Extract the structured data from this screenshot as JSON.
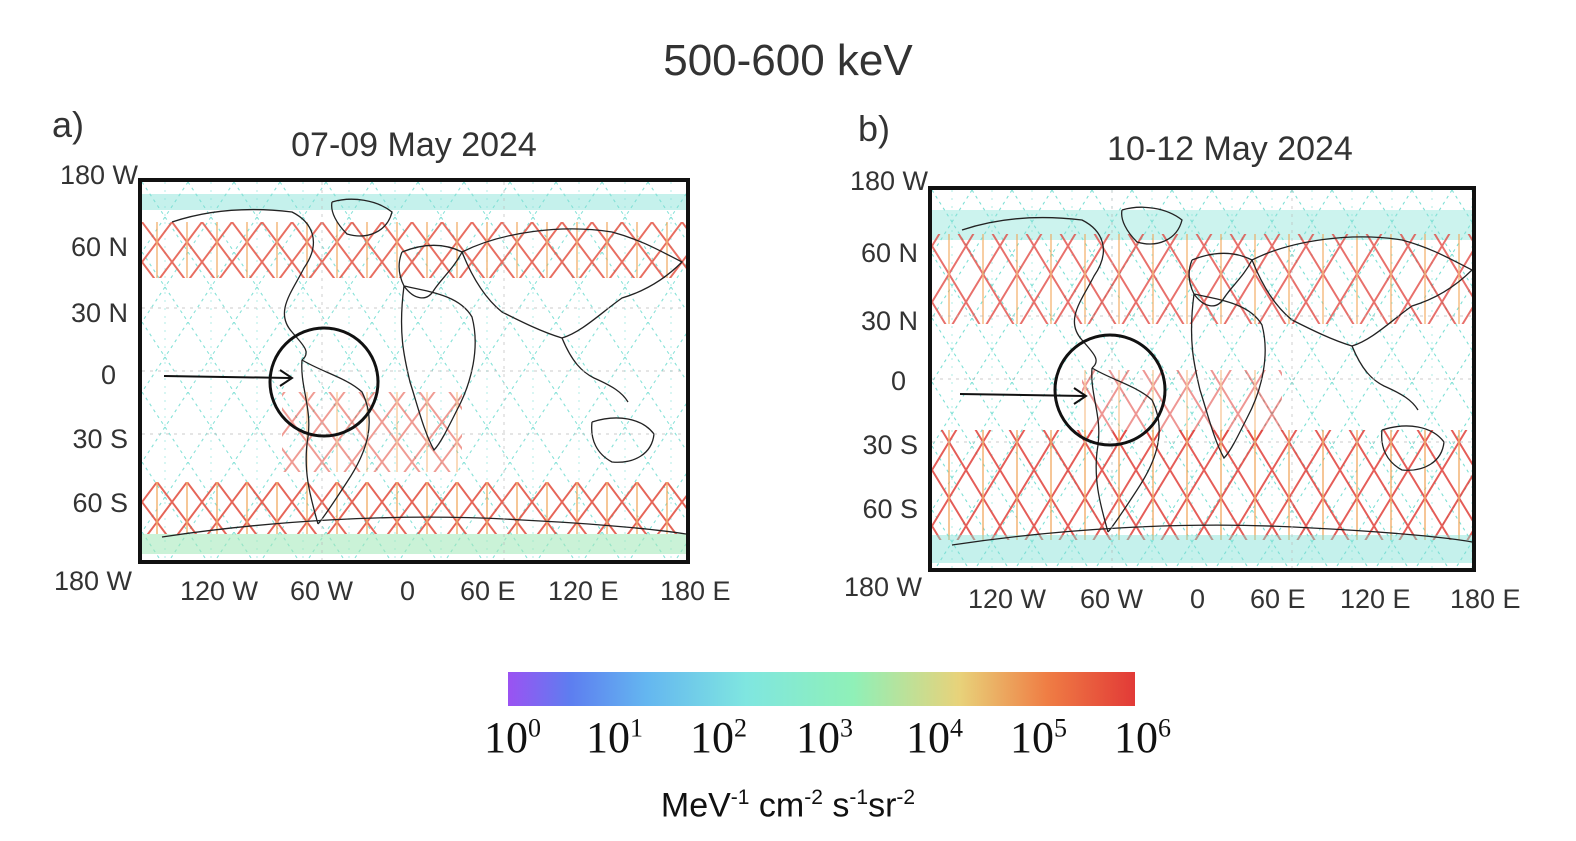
{
  "figure_title": "500-600 keV",
  "panels": [
    {
      "label": "a)",
      "title": "07-09 May 2024",
      "y_ticks": [
        "180 W",
        "60 N",
        "30 N",
        "0",
        "30 S",
        "60 S",
        "180 W"
      ],
      "x_ticks": [
        "120 W",
        "60 W",
        "0",
        "60 E",
        "120 E",
        "180 E"
      ]
    },
    {
      "label": "b)",
      "title": "10-12 May 2024",
      "y_ticks": [
        "180 W",
        "60 N",
        "30 N",
        "0",
        "30 S",
        "60 S",
        "180 W"
      ],
      "x_ticks": [
        "120 W",
        "60 W",
        "0",
        "60 E",
        "120 E",
        "180 E"
      ]
    }
  ],
  "colorbar": {
    "colors": [
      "#9b52f2",
      "#5d7ef0",
      "#64b6f0",
      "#7fe6e0",
      "#8ff0b8",
      "#e8d27a",
      "#ef7d44",
      "#e23a37"
    ],
    "ticks": [
      {
        "base": "10",
        "exp": "0"
      },
      {
        "base": "10",
        "exp": "1"
      },
      {
        "base": "10",
        "exp": "2"
      },
      {
        "base": "10",
        "exp": "3"
      },
      {
        "base": "10",
        "exp": "4"
      },
      {
        "base": "10",
        "exp": "5"
      },
      {
        "base": "10",
        "exp": "6"
      }
    ],
    "unit": {
      "p1": "MeV",
      "e1": "-1",
      "p2": " cm",
      "e2": "-2",
      "p3": " s",
      "e3": "-1",
      "p4": "sr",
      "e4": "-2"
    }
  }
}
